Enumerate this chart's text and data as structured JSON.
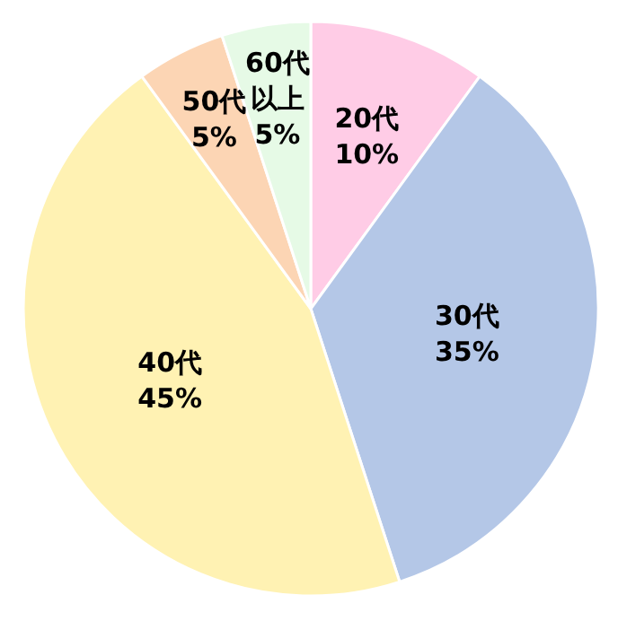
{
  "chart_data": {
    "type": "pie",
    "categories": [
      "20代",
      "30代",
      "40代",
      "50代",
      "60代以上"
    ],
    "values": [
      10,
      35,
      45,
      5,
      5
    ],
    "value_labels": [
      "10%",
      "35%",
      "45%",
      "5%",
      "5%"
    ],
    "colors": [
      "#ffcce6",
      "#b4c7e7",
      "#fff2b3",
      "#fcd5b4",
      "#e6fae6"
    ]
  }
}
